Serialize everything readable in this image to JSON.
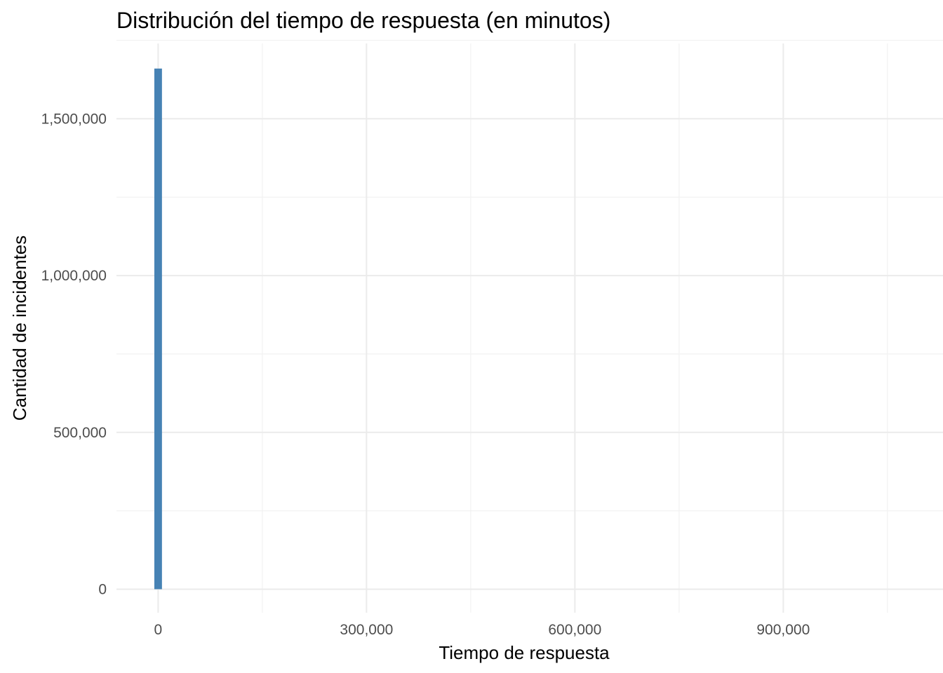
{
  "chart_data": {
    "type": "bar",
    "title": "Distribución del tiempo de respuesta (en minutos)",
    "xlabel": "Tiempo de respuesta",
    "ylabel": "Cantidad de incidentes",
    "x_ticks": [
      {
        "value": 0,
        "label": "0"
      },
      {
        "value": 300000,
        "label": "300,000"
      },
      {
        "value": 600000,
        "label": "600,000"
      },
      {
        "value": 900000,
        "label": "900,000"
      }
    ],
    "y_ticks": [
      {
        "value": 0,
        "label": "0"
      },
      {
        "value": 500000,
        "label": "500,000"
      },
      {
        "value": 1000000,
        "label": "1,000,000"
      },
      {
        "value": 1500000,
        "label": "1,500,000"
      }
    ],
    "xlim": [
      -60000,
      1130000
    ],
    "ylim": [
      -75000,
      1740000
    ],
    "grid": true,
    "bar_color": "#4682B4",
    "bins": [
      {
        "x_start": -5500,
        "x_end": 5500,
        "count": 1660000
      }
    ]
  }
}
